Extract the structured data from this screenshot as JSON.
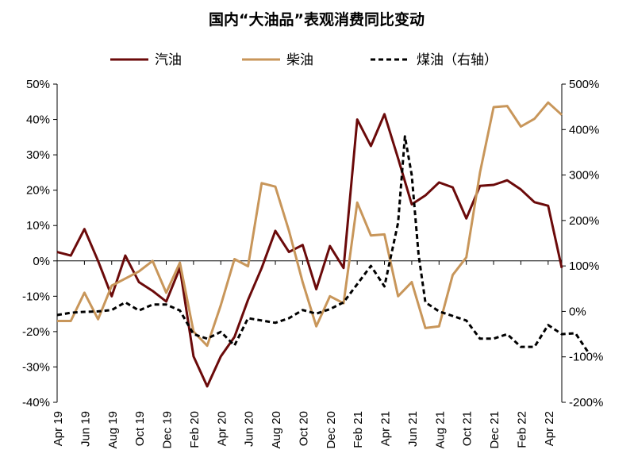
{
  "chart_data": {
    "type": "line",
    "title": "国内“大油品”表观消费同比变动",
    "x_tick_labels": [
      "Apr 19",
      "Jun 19",
      "Aug 19",
      "Oct 19",
      "Dec 19",
      "Feb 20",
      "Apr 20",
      "Jun 20",
      "Aug 20",
      "Oct 20",
      "Dec 20",
      "Feb 21",
      "Apr 21",
      "Jun 21",
      "Aug 21",
      "Oct 21",
      "Dec 21",
      "Feb 22",
      "Apr 22"
    ],
    "y_left": {
      "min": -40,
      "max": 50,
      "step": 10,
      "unit": "%",
      "ticks": [
        "50%",
        "40%",
        "30%",
        "20%",
        "10%",
        "0%",
        "-10%",
        "-20%",
        "-30%",
        "-40%"
      ]
    },
    "y_right": {
      "min": -200,
      "max": 500,
      "step": 100,
      "unit": "%",
      "ticks": [
        "500%",
        "400%",
        "300%",
        "200%",
        "100%",
        "0%",
        "-100%",
        "-200%"
      ]
    },
    "series": [
      {
        "name": "汽油",
        "axis": "left",
        "color": "#6b0a0a",
        "dash": false,
        "points": [
          [
            0,
            2.5
          ],
          [
            1,
            1.5
          ],
          [
            2,
            9
          ],
          [
            3,
            0
          ],
          [
            4,
            -10
          ],
          [
            5,
            1.5
          ],
          [
            6,
            -6
          ],
          [
            7,
            -8.5
          ],
          [
            8,
            -11.5
          ],
          [
            9,
            -2
          ],
          [
            10,
            -27
          ],
          [
            11,
            -35.5
          ],
          [
            12,
            -27
          ],
          [
            13,
            -21.5
          ],
          [
            14,
            -11
          ],
          [
            15,
            -2
          ],
          [
            16,
            8.5
          ],
          [
            17,
            2.5
          ],
          [
            18,
            4.5
          ],
          [
            19,
            -8
          ],
          [
            20,
            4.2
          ],
          [
            21,
            -2
          ],
          [
            22,
            40
          ],
          [
            23,
            32.5
          ],
          [
            24,
            41.5
          ],
          [
            25,
            29
          ],
          [
            26,
            16
          ],
          [
            27,
            18.5
          ],
          [
            28,
            22.2
          ],
          [
            29,
            20.8
          ],
          [
            30,
            12
          ],
          [
            31,
            21.2
          ],
          [
            32,
            21.5
          ],
          [
            33,
            22.8
          ],
          [
            34,
            20.2
          ],
          [
            35,
            16.6
          ],
          [
            36,
            15.6
          ],
          [
            37,
            -2
          ]
        ]
      },
      {
        "name": "柴油",
        "axis": "left",
        "color": "#c8965a",
        "dash": false,
        "points": [
          [
            0,
            -17
          ],
          [
            1,
            -17
          ],
          [
            2,
            -9
          ],
          [
            3,
            -16.5
          ],
          [
            4,
            -7
          ],
          [
            5,
            -5
          ],
          [
            6,
            -3
          ],
          [
            7,
            0
          ],
          [
            8,
            -9
          ],
          [
            9,
            -0.5
          ],
          [
            10,
            -20
          ],
          [
            11,
            -24
          ],
          [
            12,
            -12.5
          ],
          [
            13,
            0.5
          ],
          [
            14,
            -1.5
          ],
          [
            15,
            22
          ],
          [
            16,
            21
          ],
          [
            17,
            8.5
          ],
          [
            18,
            -6
          ],
          [
            19,
            -18.5
          ],
          [
            20,
            -10
          ],
          [
            21,
            -12
          ],
          [
            22,
            16.5
          ],
          [
            23,
            7.2
          ],
          [
            24,
            7.5
          ],
          [
            25,
            -10
          ],
          [
            26,
            -6
          ],
          [
            27,
            -19
          ],
          [
            28,
            -18.5
          ],
          [
            29,
            -4
          ],
          [
            30,
            1
          ],
          [
            31,
            25
          ],
          [
            32,
            43.5
          ],
          [
            33,
            43.8
          ],
          [
            34,
            38
          ],
          [
            35,
            40.2
          ],
          [
            36,
            44.8
          ],
          [
            37,
            41.3
          ]
        ]
      },
      {
        "name": "煤油（右轴）",
        "axis": "right",
        "color": "#000000",
        "dash": true,
        "points": [
          [
            0,
            -8
          ],
          [
            1,
            -3
          ],
          [
            2,
            -1
          ],
          [
            3,
            0
          ],
          [
            4,
            3
          ],
          [
            5,
            20
          ],
          [
            6,
            2
          ],
          [
            7,
            15
          ],
          [
            8,
            15
          ],
          [
            9,
            2
          ],
          [
            10,
            -50
          ],
          [
            11,
            -60
          ],
          [
            12,
            -45
          ],
          [
            13,
            -75
          ],
          [
            14,
            -15
          ],
          [
            15,
            -20
          ],
          [
            16,
            -25
          ],
          [
            17,
            -15
          ],
          [
            18,
            3
          ],
          [
            19,
            -5
          ],
          [
            20,
            5
          ],
          [
            21,
            20
          ],
          [
            22,
            60
          ],
          [
            23,
            100
          ],
          [
            24,
            55
          ],
          [
            25,
            195
          ],
          [
            25.5,
            385
          ],
          [
            26,
            300
          ],
          [
            26.5,
            125
          ],
          [
            27,
            20
          ],
          [
            28,
            0
          ],
          [
            29,
            -10
          ],
          [
            30,
            -20
          ],
          [
            31,
            -60
          ],
          [
            32,
            -60
          ],
          [
            33,
            -50
          ],
          [
            34,
            -78
          ],
          [
            35,
            -78
          ],
          [
            36,
            -30
          ],
          [
            37,
            -50
          ],
          [
            38,
            -48
          ],
          [
            39,
            -93
          ]
        ]
      }
    ],
    "legend": [
      "汽油",
      "柴油",
      "煤油（右轴）"
    ],
    "legend_position": "top"
  }
}
